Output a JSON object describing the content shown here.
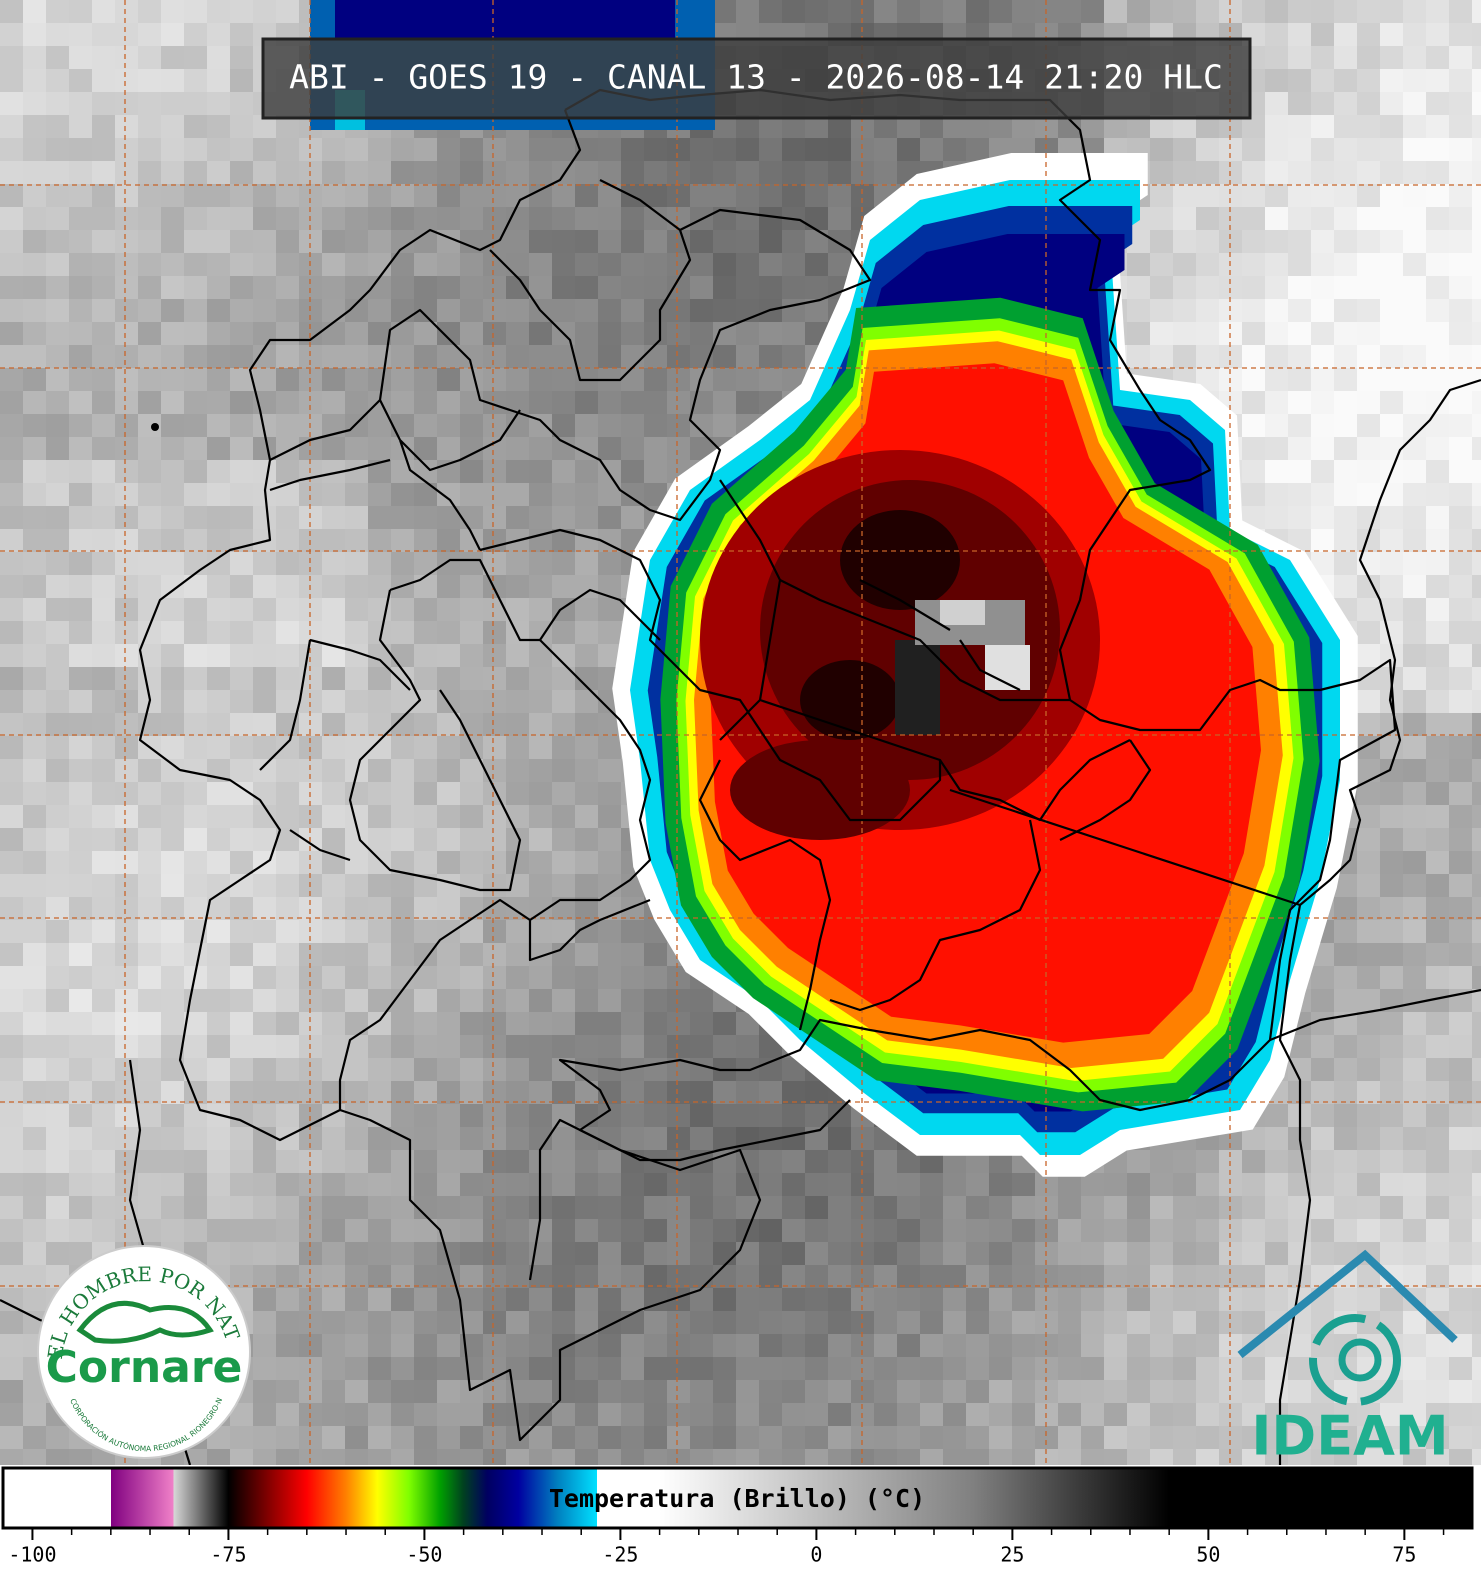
{
  "title": "ABI - GOES 19 - CANAL 13 - 2026-08-14 21:20 HLC",
  "colorbar": {
    "label": "Temperatura (Brillo) (°C)",
    "lim": [
      -103.5,
      83.5
    ],
    "ticks": [
      -100,
      -75,
      -50,
      -25,
      0,
      25,
      50,
      75
    ],
    "minor_ticks": [
      -95,
      -90,
      -85,
      -80,
      -70,
      -65,
      -60,
      -55,
      -45,
      -40,
      -35,
      -30,
      -20,
      -15,
      -10,
      -5,
      5,
      10,
      15,
      20,
      30,
      35,
      40,
      45,
      55,
      60,
      65,
      70,
      80
    ],
    "colorscale": [
      {
        "value": -103.5,
        "color": "#ffffff"
      },
      {
        "value": -90,
        "color": "#ffffff"
      },
      {
        "value": -90,
        "color": "#800080"
      },
      {
        "value": -82,
        "color": "#f080c8"
      },
      {
        "value": -82,
        "color": "#d8d8d8"
      },
      {
        "value": -75,
        "color": "#000000"
      },
      {
        "value": -70,
        "color": "#800000"
      },
      {
        "value": -65,
        "color": "#ff0000"
      },
      {
        "value": -60,
        "color": "#ff8000"
      },
      {
        "value": -56,
        "color": "#ffff00"
      },
      {
        "value": -52,
        "color": "#80ff00"
      },
      {
        "value": -48,
        "color": "#00a000"
      },
      {
        "value": -45,
        "color": "#004020"
      },
      {
        "value": -42,
        "color": "#000060"
      },
      {
        "value": -38,
        "color": "#0000a0"
      },
      {
        "value": -33,
        "color": "#0080c0"
      },
      {
        "value": -28,
        "color": "#00e0ff"
      },
      {
        "value": -28,
        "color": "#ffffff"
      },
      {
        "value": -20,
        "color": "#ffffff"
      },
      {
        "value": 20,
        "color": "#808080"
      },
      {
        "value": 45,
        "color": "#000000"
      },
      {
        "value": 83.5,
        "color": "#000000"
      }
    ]
  },
  "logos": {
    "cornare": {
      "motto": "EL HOMBRE POR NATURALEZA",
      "name": "Cornare",
      "subtitle": "CORPORACIÓN AUTÓNOMA REGIONAL RIONEGRO-NARE"
    },
    "ideam": {
      "name": "IDEAM"
    }
  }
}
